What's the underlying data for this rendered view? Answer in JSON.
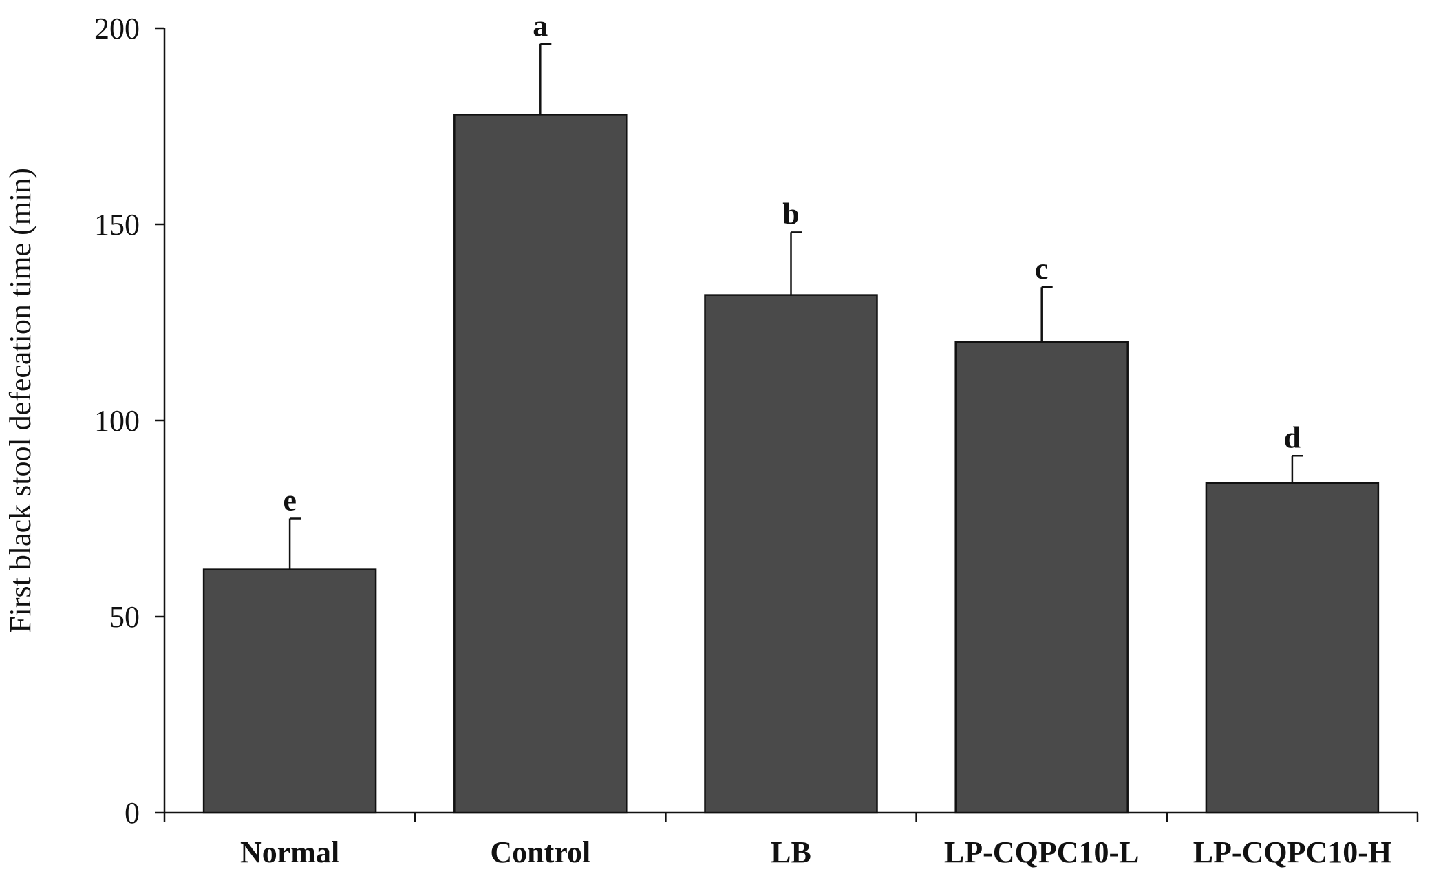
{
  "chart_data": {
    "type": "bar",
    "title": "",
    "xlabel": "",
    "ylabel": "First black stool defecation time (min)",
    "ylim": [
      0,
      200
    ],
    "yticks": [
      0,
      50,
      100,
      150,
      200
    ],
    "grid": false,
    "legend": "none",
    "categories": [
      "Normal",
      "Control",
      "LB",
      "LP-CQPC10-L",
      "LP-CQPC10-H"
    ],
    "series": [
      {
        "name": "First black stool defecation time",
        "values": [
          62,
          178,
          132,
          120,
          84
        ],
        "errors": [
          13,
          18,
          16,
          14,
          7
        ],
        "significance": [
          "e",
          "a",
          "b",
          "c",
          "d"
        ]
      }
    ],
    "colors": {
      "bar_fill": "#4a4a4a",
      "bar_stroke": "#111111",
      "axis": "#111111"
    }
  }
}
